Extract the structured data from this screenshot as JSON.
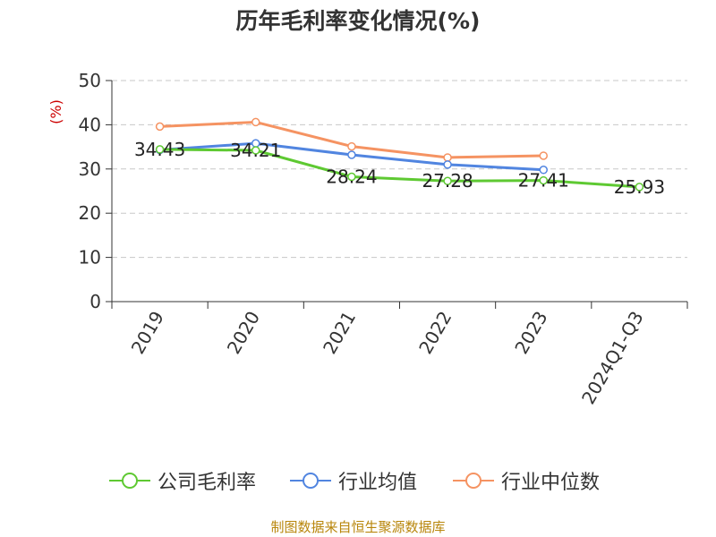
{
  "chart_data": {
    "type": "line",
    "title": "历年毛利率变化情况(%)",
    "ylabel": "(%)",
    "ylim": [
      0,
      50
    ],
    "yticks": [
      0,
      10,
      20,
      30,
      40,
      50
    ],
    "grid": true,
    "legend_position": "bottom",
    "categories": [
      "2019",
      "2020",
      "2021",
      "2022",
      "2023",
      "2024Q1-Q3"
    ],
    "series": [
      {
        "name": "公司毛利率",
        "color": "#5ec932",
        "values": [
          34.43,
          34.21,
          28.24,
          27.28,
          27.41,
          25.93
        ],
        "labels": [
          "34.43",
          "34.21",
          "28.24",
          "27.28",
          "27.41",
          "25.93"
        ]
      },
      {
        "name": "行业均值",
        "color": "#5185e0",
        "values": [
          34.3,
          35.8,
          33.2,
          31.0,
          29.8,
          null
        ]
      },
      {
        "name": "行业中位数",
        "color": "#f59362",
        "values": [
          39.6,
          40.6,
          35.1,
          32.6,
          33.0,
          null
        ]
      }
    ]
  },
  "source_note": "制图数据来自恒生聚源数据库"
}
